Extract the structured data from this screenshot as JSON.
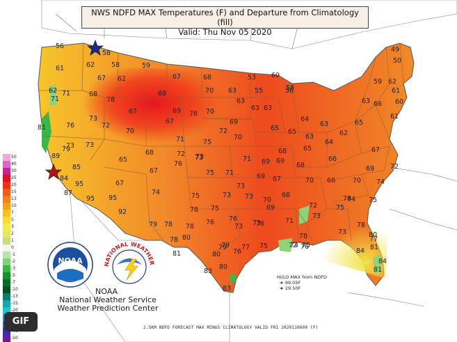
{
  "header": {
    "title_line1": "NWS NDFD MAX Temperatures (F) and Departure from Climatology (fill)",
    "title_line2": "Valid: Thu Nov 05 2020"
  },
  "legend": {
    "labels": [
      "50",
      "40",
      "30",
      "25",
      "20",
      "15",
      "13",
      "10",
      "7",
      "5",
      "3",
      "2",
      "1",
      "0",
      "-1",
      "-2",
      "-3",
      "-5",
      "-7",
      "-10",
      "-13",
      "-15",
      "-20",
      "-25",
      "-30",
      "-40",
      "-50"
    ],
    "colors": [
      "#f0a8e0",
      "#dd66c8",
      "#c8238a",
      "#e01020",
      "#f03018",
      "#f25a1c",
      "#f4801e",
      "#f6a020",
      "#f8c024",
      "#f8dc34",
      "#f2ec50",
      "#e0e86a",
      "#cdd988",
      "#f4f4f4",
      "#b8e4a6",
      "#7fd27c",
      "#3fb548",
      "#1d8d32",
      "#0f6a28",
      "#0c4e24",
      "#0e7e6e",
      "#15a8a6",
      "#22c4d4",
      "#2d8ee0",
      "#2a5ed0",
      "#3a2fb0",
      "#6a1d9c"
    ]
  },
  "labels": {
    "gif": "GIF",
    "agency_noaa": "NOAA",
    "agency_line1": "National Weather Service",
    "agency_line2": "Weather Prediction Center",
    "noaa_logo_text": "NOAA",
    "nws_logo_text": "NATIONAL WEATHER SERVICE",
    "hilo_title": "HI/LO MAX from NDFD",
    "hilo_high": "99.05F",
    "hilo_low": "29.50F",
    "bottom_note": "2.5KM NDFD FORECAST MAX MINUS CLIMATOLOGY VALID FRI 2020110600 (F)"
  },
  "temperatures": [
    {
      "v": "56"
    },
    {
      "v": "58"
    },
    {
      "v": "58"
    },
    {
      "v": "59"
    },
    {
      "v": "67"
    },
    {
      "v": "68"
    },
    {
      "v": "53"
    },
    {
      "v": "55"
    },
    {
      "v": "56"
    },
    {
      "v": "49"
    },
    {
      "v": "50"
    },
    {
      "v": "61"
    },
    {
      "v": "62"
    },
    {
      "v": "67"
    },
    {
      "v": "62"
    },
    {
      "v": "68"
    },
    {
      "v": "70"
    },
    {
      "v": "63"
    },
    {
      "v": "60"
    },
    {
      "v": "59"
    },
    {
      "v": "62"
    },
    {
      "v": "62"
    },
    {
      "v": "71"
    },
    {
      "v": "68"
    },
    {
      "v": "78"
    },
    {
      "v": "69"
    },
    {
      "v": "63"
    },
    {
      "v": "63"
    },
    {
      "v": "61"
    },
    {
      "v": "60"
    },
    {
      "v": "71"
    },
    {
      "v": "73"
    },
    {
      "v": "67"
    },
    {
      "v": "76"
    },
    {
      "v": "70"
    },
    {
      "v": "63"
    },
    {
      "v": "58"
    },
    {
      "v": "63"
    },
    {
      "v": "61"
    },
    {
      "v": "81"
    },
    {
      "v": "76"
    },
    {
      "v": "72"
    },
    {
      "v": "70"
    },
    {
      "v": "67"
    },
    {
      "v": "69"
    },
    {
      "v": "65"
    },
    {
      "v": "64"
    },
    {
      "v": "63"
    },
    {
      "v": "66"
    },
    {
      "v": "73"
    },
    {
      "v": "71"
    },
    {
      "v": "75"
    },
    {
      "v": "72"
    },
    {
      "v": "70"
    },
    {
      "v": "65"
    },
    {
      "v": "63"
    },
    {
      "v": "62"
    },
    {
      "v": "65"
    },
    {
      "v": "79"
    },
    {
      "v": "73"
    },
    {
      "v": "68"
    },
    {
      "v": "72"
    },
    {
      "v": "73"
    },
    {
      "v": "68"
    },
    {
      "v": "65"
    },
    {
      "v": "64"
    },
    {
      "v": "67"
    },
    {
      "v": "89"
    },
    {
      "v": "65"
    },
    {
      "v": "76"
    },
    {
      "v": "73"
    },
    {
      "v": "71"
    },
    {
      "v": "69"
    },
    {
      "v": "69"
    },
    {
      "v": "68"
    },
    {
      "v": "66"
    },
    {
      "v": "69"
    },
    {
      "v": "72"
    },
    {
      "v": "85"
    },
    {
      "v": "67"
    },
    {
      "v": "75"
    },
    {
      "v": "71"
    },
    {
      "v": "69"
    },
    {
      "v": "67"
    },
    {
      "v": "84"
    },
    {
      "v": "95"
    },
    {
      "v": "67"
    },
    {
      "v": "73"
    },
    {
      "v": "70"
    },
    {
      "v": "66"
    },
    {
      "v": "70"
    },
    {
      "v": "74"
    },
    {
      "v": "87"
    },
    {
      "v": "74"
    },
    {
      "v": "75"
    },
    {
      "v": "73"
    },
    {
      "v": "73"
    },
    {
      "v": "70"
    },
    {
      "v": "68"
    },
    {
      "v": "76"
    },
    {
      "v": "95"
    },
    {
      "v": "95"
    },
    {
      "v": "78"
    },
    {
      "v": "75"
    },
    {
      "v": "69"
    },
    {
      "v": "72"
    },
    {
      "v": "75"
    },
    {
      "v": "74"
    },
    {
      "v": "75"
    },
    {
      "v": "92"
    },
    {
      "v": "79"
    },
    {
      "v": "78"
    },
    {
      "v": "78"
    },
    {
      "v": "73"
    },
    {
      "v": "76"
    },
    {
      "v": "76"
    },
    {
      "v": "73"
    },
    {
      "v": "80"
    },
    {
      "v": "76"
    },
    {
      "v": "73"
    },
    {
      "v": "71"
    },
    {
      "v": "73"
    },
    {
      "v": "78"
    },
    {
      "v": "77"
    },
    {
      "v": "78"
    },
    {
      "v": "79"
    },
    {
      "v": "76"
    },
    {
      "v": "72"
    },
    {
      "v": "76"
    },
    {
      "v": "78"
    },
    {
      "v": "80"
    },
    {
      "v": "81"
    },
    {
      "v": "79"
    },
    {
      "v": "77"
    },
    {
      "v": "75"
    },
    {
      "v": "74"
    },
    {
      "v": "75"
    },
    {
      "v": "81"
    },
    {
      "v": "80"
    },
    {
      "v": "80"
    },
    {
      "v": "84"
    },
    {
      "v": "81"
    },
    {
      "v": "83"
    },
    {
      "v": "84"
    },
    {
      "v": "83"
    }
  ]
}
